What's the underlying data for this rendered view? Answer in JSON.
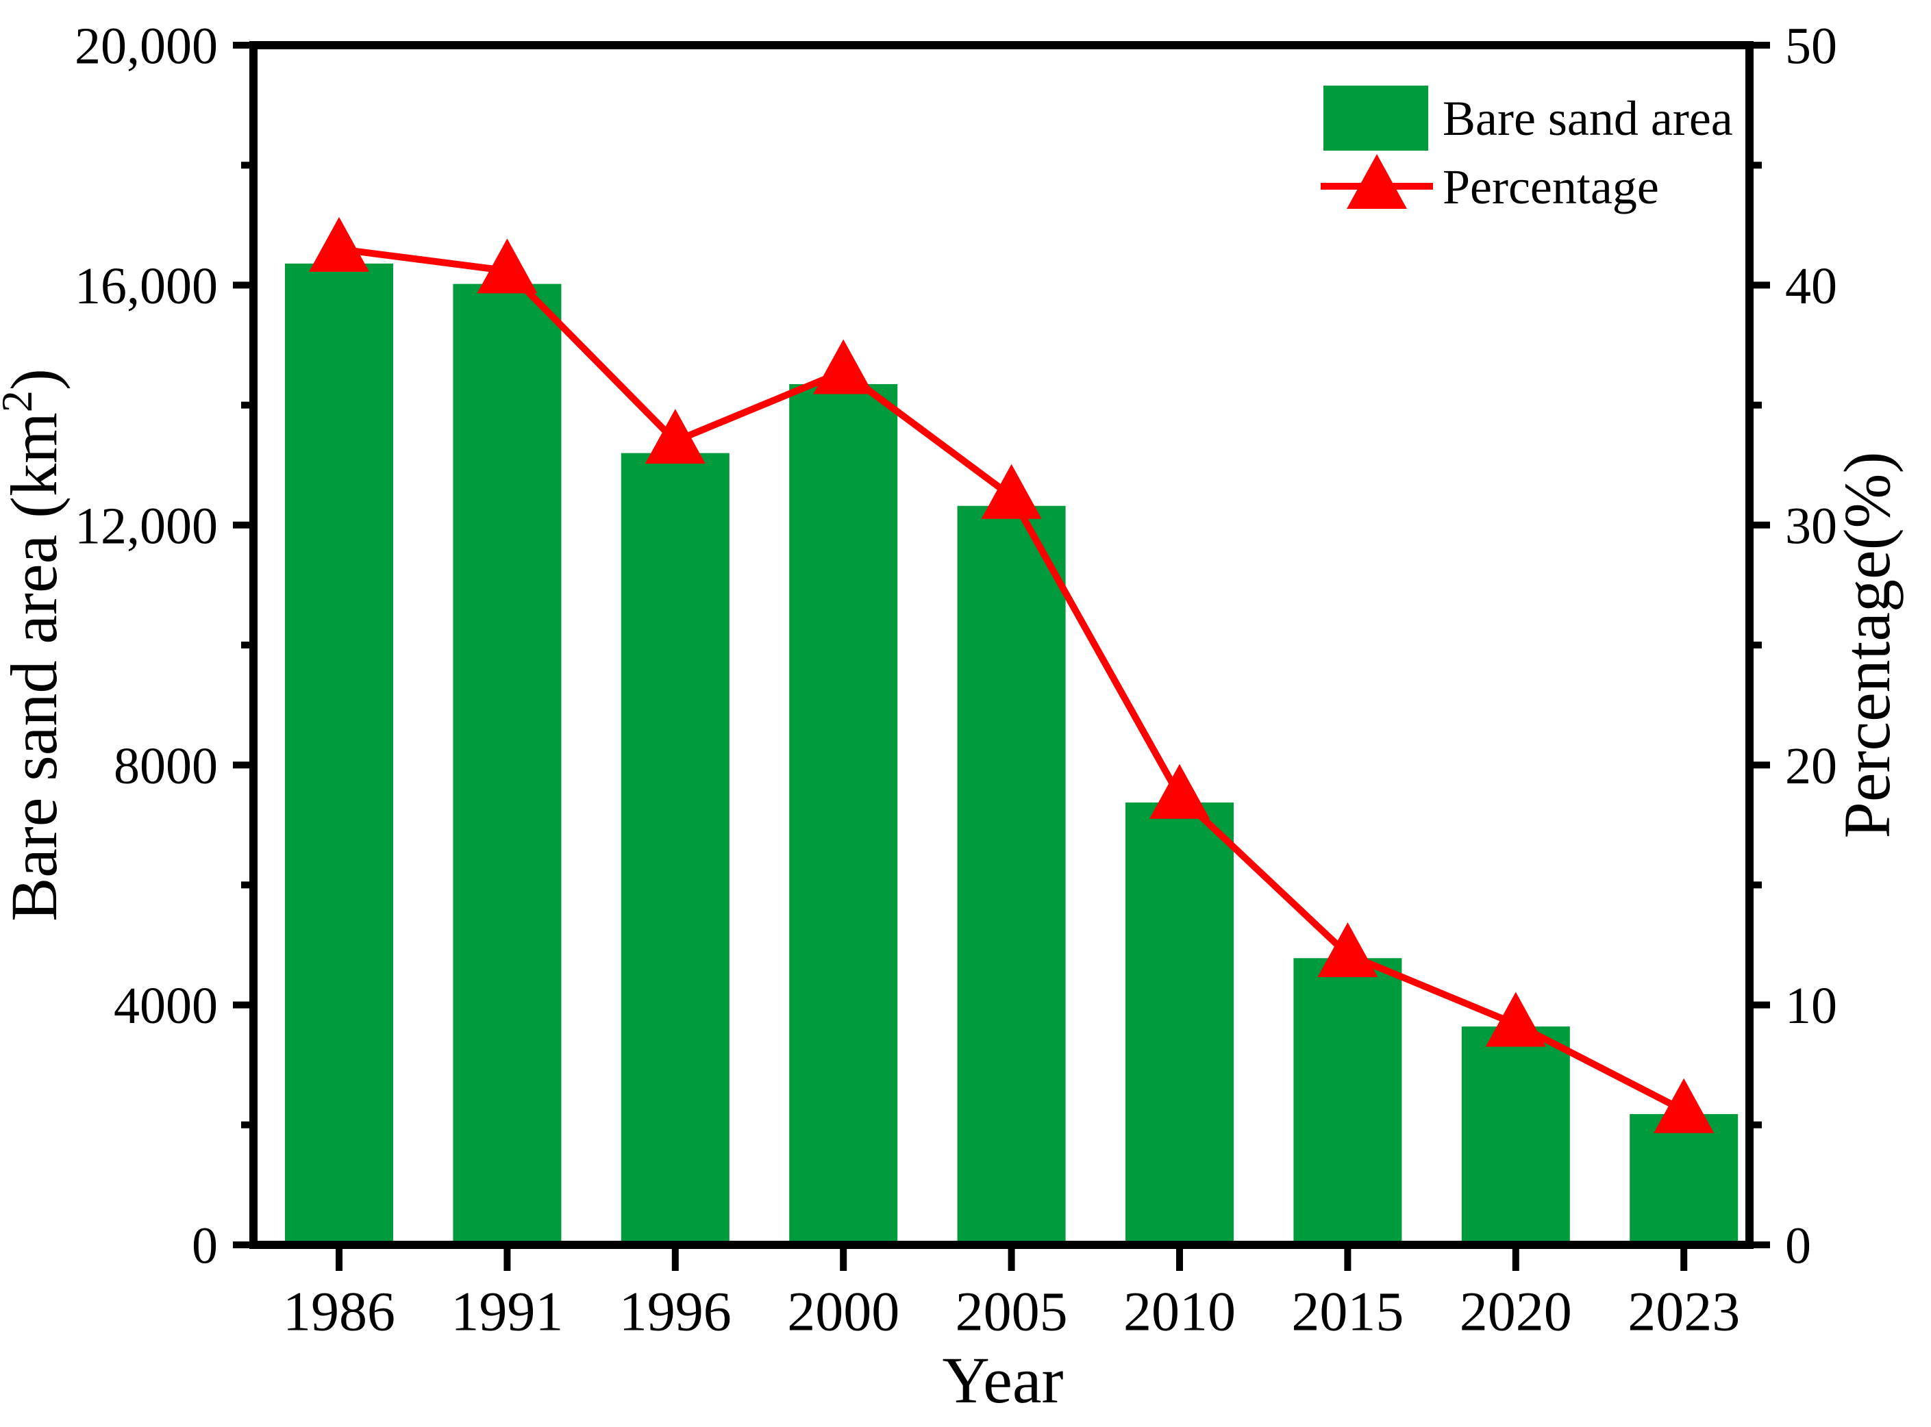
{
  "figure": {
    "xlabel": "Year",
    "ylabel_left": {
      "prefix": "Bare sand area (km",
      "sup": "2",
      "suffix": ")"
    },
    "ylabel_right": "Percentage(%)",
    "legend": {
      "bar_label": "Bare sand area",
      "line_label": "Percentage"
    }
  },
  "chart_data": {
    "type": "bar",
    "title": "",
    "grid": false,
    "legend_position": "top-right-inside",
    "categories": [
      "1986",
      "1991",
      "1996",
      "2000",
      "2005",
      "2010",
      "2015",
      "2020",
      "2023"
    ],
    "series": [
      {
        "name": "Bare sand area",
        "type": "bar",
        "axis": "left",
        "color": "#009B3C",
        "values": [
          16360,
          16020,
          13200,
          14350,
          12320,
          7375,
          4780,
          3640,
          2180
        ]
      },
      {
        "name": "Percentage",
        "type": "line",
        "axis": "right",
        "color": "#FF0000",
        "marker": "triangle-up",
        "values": [
          41.5,
          40.6,
          33.5,
          36.4,
          31.2,
          18.7,
          12.1,
          9.2,
          5.6
        ]
      }
    ],
    "axes": {
      "x": {
        "label": "Year",
        "tick_labels": [
          "1986",
          "1991",
          "1996",
          "2000",
          "2005",
          "2010",
          "2015",
          "2020",
          "2023"
        ]
      },
      "left": {
        "label": "Bare sand area (km2)",
        "min": 0,
        "max": 20000,
        "major_ticks": [
          0,
          4000,
          8000,
          12000,
          16000,
          20000
        ],
        "major_tick_labels": [
          "0",
          "4000",
          "8000",
          "12,000",
          "16,000",
          "20,000"
        ],
        "minor_ticks": [
          2000,
          6000,
          10000,
          14000,
          18000
        ]
      },
      "right": {
        "label": "Percentage(%)",
        "min": 0,
        "max": 50,
        "major_ticks": [
          0,
          10,
          20,
          30,
          40,
          50
        ],
        "major_tick_labels": [
          "0",
          "10",
          "20",
          "30",
          "40",
          "50"
        ],
        "minor_ticks": [
          5,
          15,
          25,
          35,
          45
        ]
      }
    },
    "colors": {
      "bar": "#009B3C",
      "line": "#FF0000",
      "axis": "#000000",
      "background": "#FFFFFF"
    }
  }
}
